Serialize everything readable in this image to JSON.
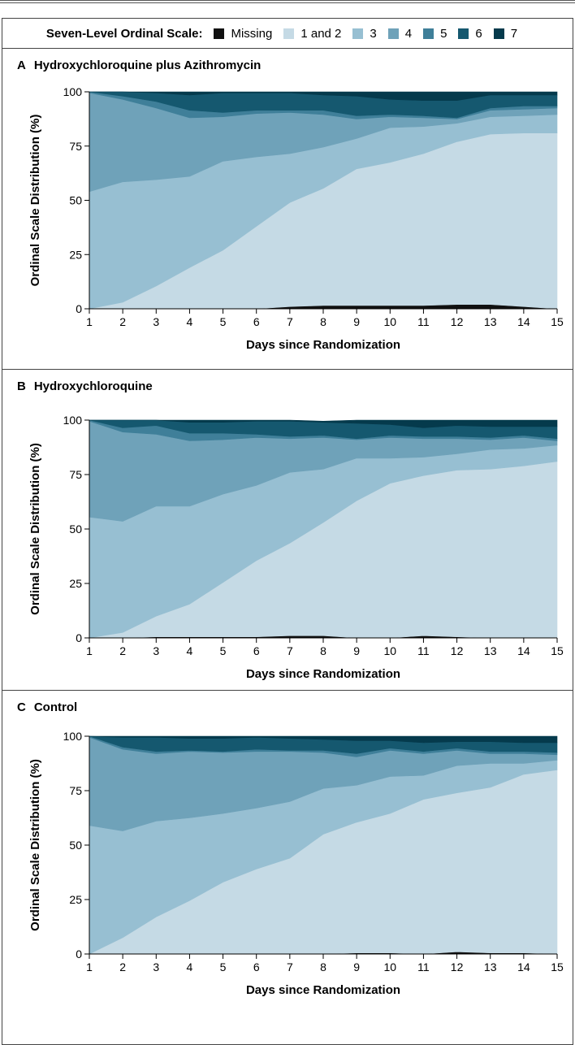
{
  "legend": {
    "title": "Seven-Level Ordinal Scale:",
    "items": [
      {
        "label": "Missing",
        "color": "#111111"
      },
      {
        "label": "1 and 2",
        "color": "#c5dae5"
      },
      {
        "label": "3",
        "color": "#97bfd2"
      },
      {
        "label": "4",
        "color": "#6fa2b9"
      },
      {
        "label": "5",
        "color": "#3f7f99"
      },
      {
        "label": "6",
        "color": "#15586f"
      },
      {
        "label": "7",
        "color": "#053a4c"
      }
    ]
  },
  "chart_data": [
    {
      "type": "area",
      "letter": "A",
      "title": "Hydroxychloroquine plus Azithromycin",
      "xlabel": "Days since Randomization",
      "ylabel": "Ordinal Scale Distribution (%)",
      "x": [
        1,
        2,
        3,
        4,
        5,
        6,
        7,
        8,
        9,
        10,
        11,
        12,
        13,
        14,
        15
      ],
      "ylim": [
        0,
        100
      ],
      "yticks": [
        0,
        25,
        50,
        75,
        100
      ],
      "series": [
        {
          "name": "Missing",
          "values": [
            0,
            0,
            0,
            0,
            0,
            0,
            1,
            1.5,
            1.5,
            1.5,
            1.5,
            2,
            2,
            1,
            0
          ]
        },
        {
          "name": "1 and 2",
          "values": [
            0,
            3,
            10.5,
            19,
            27,
            38,
            48,
            54,
            63,
            66,
            70,
            75,
            78.5,
            80,
            81
          ]
        },
        {
          "name": "3",
          "values": [
            54,
            55.5,
            49,
            42,
            41,
            32,
            22.5,
            19,
            14,
            16,
            12.5,
            8.5,
            8,
            8,
            8.5
          ]
        },
        {
          "name": "4",
          "values": [
            45.5,
            38,
            33,
            27,
            20.5,
            20,
            19,
            15,
            9,
            5,
            4,
            2,
            3,
            3,
            3
          ]
        },
        {
          "name": "5",
          "values": [
            0.5,
            1.5,
            3,
            3.5,
            2,
            1.5,
            1,
            2,
            1.5,
            1,
            1,
            0.5,
            1,
            1.5,
            1
          ]
        },
        {
          "name": "6",
          "values": [
            0,
            2,
            4,
            7,
            9,
            8,
            8,
            7,
            9,
            7,
            7,
            8,
            6,
            5,
            5
          ]
        },
        {
          "name": "7",
          "values": [
            0,
            0,
            0.5,
            1.5,
            0.5,
            0.5,
            0.5,
            1.5,
            2,
            3.5,
            4,
            4,
            1.5,
            1.5,
            1.5
          ]
        }
      ]
    },
    {
      "type": "area",
      "letter": "B",
      "title": "Hydroxychloroquine",
      "xlabel": "Days since Randomization",
      "ylabel": "Ordinal Scale Distribution (%)",
      "x": [
        1,
        2,
        3,
        4,
        5,
        6,
        7,
        8,
        9,
        10,
        11,
        12,
        13,
        14,
        15
      ],
      "ylim": [
        0,
        100
      ],
      "yticks": [
        0,
        25,
        50,
        75,
        100
      ],
      "series": [
        {
          "name": "Missing",
          "values": [
            0,
            0,
            0.5,
            0.5,
            0.5,
            0.5,
            1,
            1,
            0,
            0,
            1,
            0.5,
            0,
            0,
            0
          ]
        },
        {
          "name": "1 and 2",
          "values": [
            0,
            2.5,
            9.5,
            15,
            25,
            35,
            42.5,
            52,
            63,
            71,
            73.5,
            76.5,
            77.5,
            79,
            81
          ]
        },
        {
          "name": "3",
          "values": [
            55.5,
            51,
            50.5,
            45,
            40.5,
            34.5,
            32.5,
            24.5,
            19.5,
            11.5,
            8.5,
            7.5,
            9,
            8,
            7.5
          ]
        },
        {
          "name": "4",
          "values": [
            44,
            41,
            33,
            30,
            25,
            22,
            15.5,
            14.5,
            8.5,
            9.5,
            8.5,
            7,
            4.5,
            5,
            2
          ]
        },
        {
          "name": "5",
          "values": [
            0.5,
            2,
            4,
            3.5,
            3,
            1.5,
            1,
            1,
            0.5,
            1,
            1,
            1,
            1,
            1,
            1
          ]
        },
        {
          "name": "6",
          "values": [
            0,
            3.5,
            2.5,
            5,
            5,
            6,
            7,
            6,
            7,
            5,
            4,
            5,
            5,
            4,
            5.5
          ]
        },
        {
          "name": "7",
          "values": [
            0,
            0,
            0,
            1,
            1,
            0.5,
            0.5,
            0.5,
            1.5,
            3,
            3.5,
            2.5,
            3,
            3,
            3
          ]
        }
      ]
    },
    {
      "type": "area",
      "letter": "C",
      "title": "Control",
      "xlabel": "Days since Randomization",
      "ylabel": "Ordinal Scale Distribution (%)",
      "x": [
        1,
        2,
        3,
        4,
        5,
        6,
        7,
        8,
        9,
        10,
        11,
        12,
        13,
        14,
        15
      ],
      "ylim": [
        0,
        100
      ],
      "yticks": [
        0,
        25,
        50,
        75,
        100
      ],
      "series": [
        {
          "name": "Missing",
          "values": [
            0,
            0,
            0,
            0,
            0,
            0,
            0,
            0,
            0.5,
            0.5,
            0,
            1,
            0.5,
            0.5,
            0
          ]
        },
        {
          "name": "1 and 2",
          "values": [
            0,
            7.5,
            17,
            24.5,
            33,
            39,
            44,
            55,
            60,
            64,
            71,
            73,
            76,
            82,
            84.5
          ]
        },
        {
          "name": "3",
          "values": [
            59,
            49,
            44,
            38,
            31.5,
            28,
            26,
            21,
            17,
            17,
            11,
            12.5,
            11,
            5,
            4.5
          ]
        },
        {
          "name": "4",
          "values": [
            40.5,
            37.5,
            31,
            30.5,
            28,
            26,
            23,
            16.5,
            13,
            12,
            10,
            7,
            4.5,
            4.5,
            2.5
          ]
        },
        {
          "name": "5",
          "values": [
            0.5,
            1,
            1,
            0.5,
            0.5,
            1,
            0.5,
            1,
            1.5,
            1,
            1,
            1,
            1,
            1,
            1
          ]
        },
        {
          "name": "6",
          "values": [
            0,
            4.5,
            6.5,
            5.5,
            6,
            5.5,
            5.5,
            5,
            6,
            3.5,
            4,
            3,
            4.5,
            4,
            4.5
          ]
        },
        {
          "name": "7",
          "values": [
            0,
            0.5,
            0.5,
            1,
            1,
            0.5,
            1,
            1.5,
            2,
            2,
            3,
            2.5,
            2.5,
            3,
            3
          ]
        }
      ]
    }
  ]
}
